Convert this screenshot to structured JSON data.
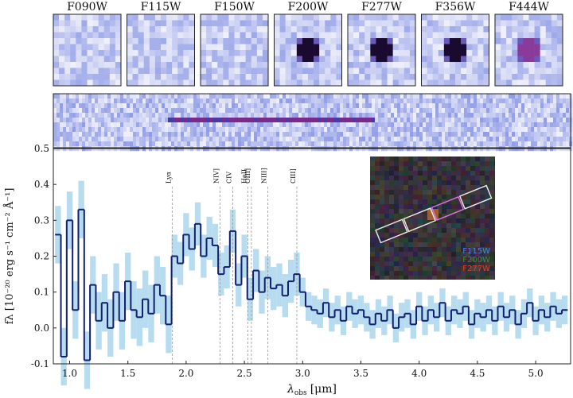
{
  "chart_data": {
    "type": "step",
    "cutout_filters": [
      "F090W",
      "F115W",
      "F150W",
      "F200W",
      "F277W",
      "F356W",
      "F444W"
    ],
    "xlabel": {
      "symbol": "λ",
      "subscript": "obs",
      "unit": "[μm]"
    },
    "ylabel": "fλ [10⁻²⁰ erg s⁻¹ cm⁻² Å⁻¹]",
    "xlim": [
      0.86,
      5.3
    ],
    "ylim": [
      -0.1,
      0.5
    ],
    "xticks": [
      {
        "value": 1,
        "label": "1.0"
      },
      1.5,
      {
        "value": 2,
        "label": "2.0"
      },
      2.5,
      {
        "value": 3,
        "label": "3.0"
      },
      3.5,
      {
        "value": 4,
        "label": "4.0"
      },
      4.5,
      {
        "value": 5,
        "label": "5.0"
      }
    ],
    "yticks": [
      -0.1,
      {
        "value": 0,
        "label": "0.0"
      },
      0.1,
      0.2,
      0.3,
      0.4,
      0.5
    ],
    "lines": [
      {
        "label": "Lyα",
        "x": 1.88
      },
      {
        "label": "NIV]",
        "x": 2.29
      },
      {
        "label": "CIV",
        "x": 2.4
      },
      {
        "label": "HeII",
        "x": 2.53
      },
      {
        "label": "OIII]",
        "x": 2.56
      },
      {
        "label": "NIII]",
        "x": 2.7
      },
      {
        "label": "CIII]",
        "x": 2.95
      }
    ],
    "inset_legend": [
      {
        "name": "F115W",
        "color": "#4f7fd8"
      },
      {
        "name": "F200W",
        "color": "#3a8a3a"
      },
      {
        "name": "F277W",
        "color": "#d8402a"
      }
    ],
    "x": [
      0.9,
      0.95,
      1.0,
      1.05,
      1.1,
      1.15,
      1.2,
      1.25,
      1.3,
      1.35,
      1.4,
      1.45,
      1.5,
      1.55,
      1.6,
      1.65,
      1.7,
      1.75,
      1.8,
      1.85,
      1.9,
      1.95,
      2.0,
      2.05,
      2.1,
      2.15,
      2.2,
      2.25,
      2.3,
      2.35,
      2.4,
      2.45,
      2.5,
      2.55,
      2.6,
      2.65,
      2.7,
      2.75,
      2.8,
      2.85,
      2.9,
      2.95,
      3.0,
      3.05,
      3.1,
      3.15,
      3.2,
      3.25,
      3.3,
      3.35,
      3.4,
      3.45,
      3.5,
      3.55,
      3.6,
      3.65,
      3.7,
      3.75,
      3.8,
      3.85,
      3.9,
      3.95,
      4.0,
      4.05,
      4.1,
      4.15,
      4.2,
      4.25,
      4.3,
      4.35,
      4.4,
      4.45,
      4.5,
      4.55,
      4.6,
      4.65,
      4.7,
      4.75,
      4.8,
      4.85,
      4.9,
      4.95,
      5.0,
      5.05,
      5.1,
      5.15,
      5.2,
      5.25
    ],
    "series": [
      {
        "name": "spectrum",
        "color": "#12206e",
        "error_color": "#b7dcef",
        "values": [
          0.26,
          -0.08,
          0.3,
          0.05,
          0.33,
          -0.09,
          0.12,
          0.02,
          0.07,
          0.0,
          0.1,
          0.02,
          0.13,
          0.05,
          0.03,
          0.08,
          0.04,
          0.12,
          0.09,
          0.01,
          0.2,
          0.18,
          0.26,
          0.22,
          0.29,
          0.2,
          0.25,
          0.23,
          0.15,
          0.17,
          0.27,
          0.12,
          0.2,
          0.08,
          0.16,
          0.1,
          0.14,
          0.11,
          0.12,
          0.09,
          0.13,
          0.15,
          0.1,
          0.06,
          0.05,
          0.04,
          0.07,
          0.03,
          0.05,
          0.02,
          0.06,
          0.04,
          0.05,
          0.03,
          0.01,
          0.04,
          0.02,
          0.05,
          0.0,
          0.03,
          0.04,
          0.01,
          0.06,
          0.02,
          0.05,
          0.03,
          0.07,
          0.02,
          0.05,
          0.04,
          0.06,
          0.01,
          0.04,
          0.03,
          0.05,
          0.02,
          0.06,
          0.03,
          0.05,
          0.01,
          0.04,
          0.07,
          0.02,
          0.05,
          0.03,
          0.06,
          0.04,
          0.05
        ],
        "errors": [
          0.08,
          0.08,
          0.08,
          0.08,
          0.08,
          0.08,
          0.08,
          0.08,
          0.08,
          0.08,
          0.08,
          0.08,
          0.08,
          0.08,
          0.08,
          0.08,
          0.08,
          0.08,
          0.08,
          0.08,
          0.06,
          0.06,
          0.06,
          0.06,
          0.06,
          0.06,
          0.06,
          0.06,
          0.06,
          0.06,
          0.06,
          0.06,
          0.06,
          0.06,
          0.06,
          0.06,
          0.06,
          0.06,
          0.06,
          0.06,
          0.06,
          0.06,
          0.04,
          0.04,
          0.04,
          0.04,
          0.04,
          0.04,
          0.04,
          0.04,
          0.04,
          0.04,
          0.04,
          0.04,
          0.04,
          0.04,
          0.04,
          0.04,
          0.04,
          0.04,
          0.04,
          0.04,
          0.04,
          0.04,
          0.04,
          0.04,
          0.04,
          0.04,
          0.04,
          0.04,
          0.04,
          0.04,
          0.04,
          0.04,
          0.04,
          0.04,
          0.04,
          0.04,
          0.04,
          0.04,
          0.04,
          0.04,
          0.04,
          0.04,
          0.04,
          0.04,
          0.04,
          0.04
        ]
      }
    ]
  }
}
